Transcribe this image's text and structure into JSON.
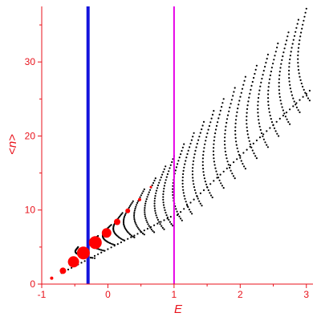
{
  "chart_data": {
    "type": "scatter",
    "xlabel": "E",
    "ylabel": "<n>",
    "xlim": [
      -1,
      3.1
    ],
    "ylim": [
      0,
      37.5
    ],
    "xticks": [
      -1,
      0,
      1,
      2,
      3
    ],
    "yticks": [
      0,
      10,
      20,
      30
    ],
    "grid": false,
    "colors": {
      "axis": "#e8121b",
      "points": "#000000",
      "highlight": "#ff0000",
      "line_blue": "#1414dc",
      "line_magenta": "#e600e6"
    },
    "vertical_lines": [
      {
        "x": -0.3,
        "color": "#1414dc"
      },
      {
        "x": 1.0,
        "color": "#e600e6"
      }
    ],
    "highlight_points": [
      {
        "x": -0.85,
        "y": 0.8,
        "size": 2
      },
      {
        "x": -0.68,
        "y": 1.8,
        "size": 4
      },
      {
        "x": -0.52,
        "y": 3.0,
        "size": 7
      },
      {
        "x": -0.37,
        "y": 4.2,
        "size": 8
      },
      {
        "x": -0.19,
        "y": 5.6,
        "size": 8
      },
      {
        "x": -0.02,
        "y": 6.9,
        "size": 6
      },
      {
        "x": 0.14,
        "y": 8.4,
        "size": 4
      },
      {
        "x": 0.3,
        "y": 9.9,
        "size": 3
      },
      {
        "x": 0.48,
        "y": 11.4,
        "size": 2
      },
      {
        "x": 0.65,
        "y": 13.1,
        "size": 1.5
      }
    ],
    "families": [
      {
        "e0": -0.2,
        "n0": 3.5,
        "e_end": -0.45,
        "n_end": 5.0
      },
      {
        "e0": -0.05,
        "n0": 4.5,
        "e_end": -0.15,
        "n_end": 6.5
      },
      {
        "e0": 0.1,
        "n0": 5.3,
        "e_end": 0.05,
        "n_end": 8.0
      },
      {
        "e0": 0.25,
        "n0": 5.9,
        "e_end": 0.22,
        "n_end": 9.6
      },
      {
        "e0": 0.4,
        "n0": 6.3,
        "e_end": 0.38,
        "n_end": 11.2
      },
      {
        "e0": 0.55,
        "n0": 6.7,
        "e_end": 0.55,
        "n_end": 12.8
      },
      {
        "e0": 0.7,
        "n0": 7.0,
        "e_end": 0.72,
        "n_end": 14.3
      },
      {
        "e0": 0.85,
        "n0": 7.4,
        "e_end": 0.87,
        "n_end": 15.9
      },
      {
        "e0": 0.98,
        "n0": 7.9,
        "e_end": 1.0,
        "n_end": 17.3
      },
      {
        "e0": 1.12,
        "n0": 8.6,
        "e_end": 1.15,
        "n_end": 18.9
      },
      {
        "e0": 1.27,
        "n0": 9.5,
        "e_end": 1.3,
        "n_end": 20.4
      },
      {
        "e0": 1.42,
        "n0": 10.6,
        "e_end": 1.45,
        "n_end": 21.9
      },
      {
        "e0": 1.58,
        "n0": 11.7,
        "e_end": 1.6,
        "n_end": 23.4
      },
      {
        "e0": 1.75,
        "n0": 13.0,
        "e_end": 1.75,
        "n_end": 25.0
      },
      {
        "e0": 1.92,
        "n0": 14.3,
        "e_end": 1.92,
        "n_end": 26.5
      },
      {
        "e0": 2.08,
        "n0": 15.6,
        "e_end": 2.08,
        "n_end": 28.0
      },
      {
        "e0": 2.25,
        "n0": 17.0,
        "e_end": 2.25,
        "n_end": 29.5
      },
      {
        "e0": 2.42,
        "n0": 18.5,
        "e_end": 2.42,
        "n_end": 31.0
      },
      {
        "e0": 2.58,
        "n0": 20.0,
        "e_end": 2.57,
        "n_end": 32.5
      },
      {
        "e0": 2.75,
        "n0": 21.6,
        "e_end": 2.73,
        "n_end": 34.0
      },
      {
        "e0": 2.9,
        "n0": 23.2,
        "e_end": 2.88,
        "n_end": 35.7
      },
      {
        "e0": 3.05,
        "n0": 24.8,
        "e_end": 3.0,
        "n_end": 37.2
      }
    ]
  }
}
